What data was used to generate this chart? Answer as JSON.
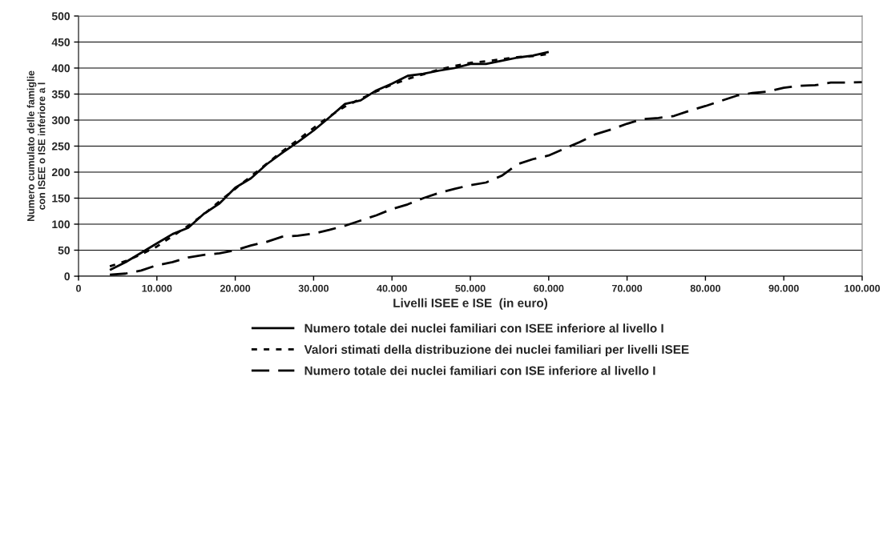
{
  "chart_data": {
    "type": "line",
    "xlabel": "Livelli ISEE e ISE  (in euro)",
    "ylabel": "Numero cumulato delle famiglie\ncon ISEE o ISE inferiore a l",
    "x": [
      4000,
      6000,
      8000,
      10000,
      12000,
      14000,
      16000,
      18000,
      20000,
      22000,
      24000,
      26000,
      28000,
      30000,
      32000,
      34000,
      36000,
      38000,
      40000,
      42000,
      44000,
      46000,
      48000,
      50000,
      52000,
      54000,
      56000,
      58000,
      60000,
      62000,
      64000,
      66000,
      68000,
      70000,
      72000,
      74000,
      76000,
      78000,
      80000,
      82000,
      84000,
      86000,
      88000,
      90000,
      92000,
      94000,
      96000,
      98000,
      100000
    ],
    "series": [
      {
        "name": "Numero totale dei nuclei familiari con ISEE inferiore al livello I",
        "color": "#000000",
        "line_style": "solid",
        "values": [
          12,
          27,
          45,
          63,
          81,
          93,
          120,
          140,
          170,
          188,
          215,
          237,
          258,
          280,
          305,
          331,
          338,
          357,
          370,
          385,
          389,
          395,
          400,
          408,
          408,
          414,
          420,
          424,
          431,
          null,
          null,
          null,
          null,
          null,
          null,
          null,
          null,
          null,
          null,
          null,
          null,
          null,
          null,
          null,
          null,
          null,
          null,
          null,
          null
        ]
      },
      {
        "name": "Valori stimati della distribuzione dei nuclei familiari per livelli ISEE",
        "color": "#000000",
        "line_style": "dotted",
        "values": [
          19,
          29,
          42,
          57,
          77,
          97,
          119,
          144,
          168,
          192,
          216,
          240,
          262,
          285,
          307,
          326,
          341,
          355,
          368,
          379,
          388,
          397,
          404,
          410,
          413,
          417,
          421,
          423,
          427,
          null,
          null,
          null,
          null,
          null,
          null,
          null,
          null,
          null,
          null,
          null,
          null,
          null,
          null,
          null,
          null,
          null,
          null,
          null,
          null
        ]
      },
      {
        "name": "Numero totale dei nuclei familiari con ISE inferiore al livello I",
        "color": "#000000",
        "line_style": "dashed",
        "values": [
          3,
          5,
          11,
          21,
          27,
          36,
          41,
          44,
          50,
          59,
          66,
          76,
          78,
          82,
          89,
          97,
          107,
          117,
          129,
          138,
          150,
          160,
          168,
          175,
          180,
          193,
          215,
          225,
          232,
          245,
          258,
          273,
          282,
          293,
          302,
          304,
          308,
          318,
          327,
          337,
          347,
          352,
          355,
          362,
          366,
          367,
          372,
          372,
          373
        ]
      }
    ],
    "xlim": [
      0,
      100000
    ],
    "xticks": [
      0,
      {
        "value": 10000,
        "label": "10.000"
      },
      {
        "value": 20000,
        "label": "20.000"
      },
      {
        "value": 30000,
        "label": "30.000"
      },
      {
        "value": 40000,
        "label": "40.000"
      },
      {
        "value": 50000,
        "label": "50.000"
      },
      {
        "value": 60000,
        "label": "60.000"
      },
      {
        "value": 70000,
        "label": "70.000"
      },
      {
        "value": 80000,
        "label": "80.000"
      },
      {
        "value": 90000,
        "label": "90.000"
      },
      {
        "value": 100000,
        "label": "100.000"
      }
    ],
    "ylim": [
      0,
      500
    ],
    "yticks": [
      0,
      50,
      100,
      150,
      200,
      250,
      300,
      350,
      400,
      450,
      500
    ],
    "grid": "y",
    "legend": "bottom",
    "marker": "none"
  }
}
